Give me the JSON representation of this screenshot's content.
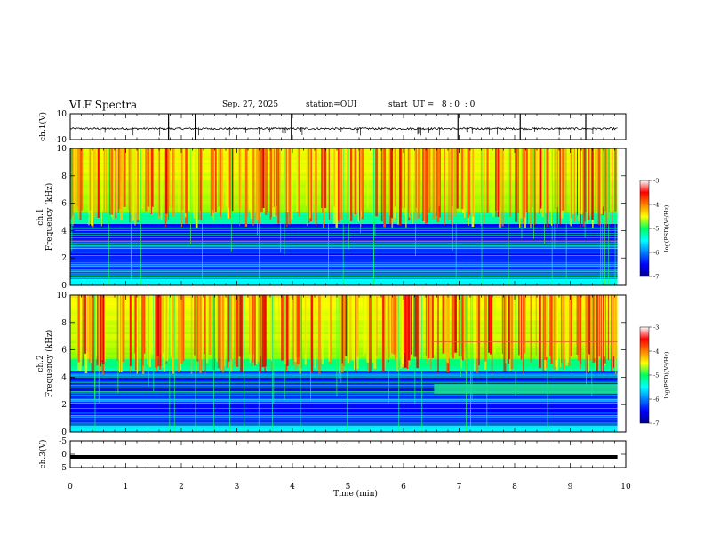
{
  "header": {
    "title": "VLF Spectra",
    "date": "Sep. 27, 2025",
    "station": "station=OUI",
    "start": "start  UT =   8 : 0  : 0"
  },
  "chart_data": [
    {
      "type": "line",
      "panel": "ch1-waveform",
      "ylabel": "ch.1(V)",
      "ylim": [
        -10,
        10
      ],
      "yticks": [
        "10",
        "-10"
      ],
      "baseline": -1.5,
      "x_range_min": [
        0,
        10
      ],
      "spikes_min": [
        1.77,
        2.25,
        3.98,
        6.98,
        8.1,
        9.28
      ],
      "description": "noisy waveform around -1.5 V with occasional spikes"
    },
    {
      "type": "heatmap",
      "panel": "ch1-spectrogram",
      "ylabel": "ch.1\nFrequency (kHz)",
      "ylim": [
        0,
        10
      ],
      "yticks": [
        "0",
        "2",
        "4",
        "6",
        "8",
        "10"
      ],
      "x_range_min": [
        0,
        9.85
      ],
      "colorbar": {
        "label": "log(PSD)(V²/Hz)",
        "range": [
          -7,
          -3
        ],
        "ticks": [
          "-3",
          "-4",
          "-5",
          "-6",
          "-7"
        ]
      }
    },
    {
      "type": "heatmap",
      "panel": "ch2-spectrogram",
      "ylabel": "ch.2\nFrequency (kHz)",
      "ylim": [
        0,
        10
      ],
      "yticks": [
        "0",
        "2",
        "4",
        "6",
        "8",
        "10"
      ],
      "x_range_min": [
        0,
        9.85
      ],
      "band_after_min": 6.55,
      "band_khz": [
        2.8,
        3.5
      ],
      "colorbar": {
        "label": "log(PSD)(V²/Hz)",
        "range": [
          -7,
          -3
        ],
        "ticks": [
          "-3",
          "-4",
          "-5",
          "-6",
          "-7"
        ]
      }
    },
    {
      "type": "line",
      "panel": "ch3-waveform",
      "ylabel": "ch.3(V)",
      "ylim": [
        -5,
        5
      ],
      "yticks": [
        "5",
        "0",
        "-5"
      ],
      "baseline": -1.0,
      "x_range_min": [
        0,
        9.85
      ]
    }
  ],
  "xaxis": {
    "label": "Time (min)",
    "range": [
      0,
      10
    ],
    "ticks": [
      "0",
      "1",
      "2",
      "3",
      "4",
      "5",
      "6",
      "7",
      "8",
      "9",
      "10"
    ]
  }
}
